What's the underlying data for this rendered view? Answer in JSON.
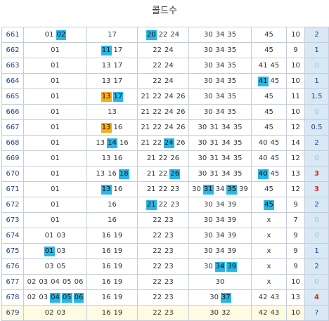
{
  "title": "콜드수",
  "colors": {
    "blue_highlight": "#28b7e8",
    "orange_highlight": "#f8ad1c",
    "red_text": "#d42a1a",
    "pale_text": "#a7c1de"
  },
  "rows": [
    {
      "round": "661",
      "g1": [
        {
          "v": "01"
        },
        {
          "v": "02",
          "h": "blue"
        }
      ],
      "g2": [
        {
          "v": "17"
        }
      ],
      "g3": [
        {
          "v": "20",
          "h": "blue"
        },
        {
          "v": "22"
        },
        {
          "v": "24"
        }
      ],
      "g4": [
        {
          "v": "30"
        },
        {
          "v": "34"
        },
        {
          "v": "35"
        }
      ],
      "g5": [
        {
          "v": "45"
        }
      ],
      "sum": "10",
      "cold": "2",
      "style": "normal"
    },
    {
      "round": "662",
      "g1": [
        {
          "v": "01"
        }
      ],
      "g2": [
        {
          "v": "11",
          "h": "blue"
        },
        {
          "v": "17"
        }
      ],
      "g3": [
        {
          "v": "22"
        },
        {
          "v": "24"
        }
      ],
      "g4": [
        {
          "v": "30"
        },
        {
          "v": "34"
        },
        {
          "v": "35"
        }
      ],
      "g5": [
        {
          "v": "45"
        }
      ],
      "sum": "9",
      "cold": "1",
      "style": "normal"
    },
    {
      "round": "663",
      "g1": [
        {
          "v": "01"
        }
      ],
      "g2": [
        {
          "v": "13"
        },
        {
          "v": "17"
        }
      ],
      "g3": [
        {
          "v": "22"
        },
        {
          "v": "24"
        }
      ],
      "g4": [
        {
          "v": "30"
        },
        {
          "v": "34"
        },
        {
          "v": "35"
        }
      ],
      "g5": [
        {
          "v": "41"
        },
        {
          "v": "45"
        }
      ],
      "sum": "10",
      "cold": "0",
      "style": "cold"
    },
    {
      "round": "664",
      "g1": [
        {
          "v": "01"
        }
      ],
      "g2": [
        {
          "v": "13"
        },
        {
          "v": "17"
        }
      ],
      "g3": [
        {
          "v": "22"
        },
        {
          "v": "24"
        }
      ],
      "g4": [
        {
          "v": "30"
        },
        {
          "v": "34"
        },
        {
          "v": "35"
        }
      ],
      "g5": [
        {
          "v": "41",
          "h": "blue"
        },
        {
          "v": "45"
        }
      ],
      "sum": "10",
      "cold": "1",
      "style": "normal"
    },
    {
      "round": "665",
      "g1": [
        {
          "v": "01"
        }
      ],
      "g2": [
        {
          "v": "13",
          "h": "orange"
        },
        {
          "v": "17",
          "h": "blue"
        }
      ],
      "g3": [
        {
          "v": "21"
        },
        {
          "v": "22"
        },
        {
          "v": "24"
        },
        {
          "v": "26"
        }
      ],
      "g4": [
        {
          "v": "30"
        },
        {
          "v": "34"
        },
        {
          "v": "35"
        }
      ],
      "g5": [
        {
          "v": "45"
        }
      ],
      "sum": "11",
      "cold": "1.5",
      "style": "normal"
    },
    {
      "round": "666",
      "g1": [
        {
          "v": "01"
        }
      ],
      "g2": [
        {
          "v": "13"
        }
      ],
      "g3": [
        {
          "v": "21"
        },
        {
          "v": "22"
        },
        {
          "v": "24"
        },
        {
          "v": "26"
        }
      ],
      "g4": [
        {
          "v": "30"
        },
        {
          "v": "34"
        },
        {
          "v": "35"
        }
      ],
      "g5": [
        {
          "v": "45"
        }
      ],
      "sum": "10",
      "cold": "0",
      "style": "cold"
    },
    {
      "round": "667",
      "g1": [
        {
          "v": "01"
        }
      ],
      "g2": [
        {
          "v": "13",
          "h": "orange"
        },
        {
          "v": "16"
        }
      ],
      "g3": [
        {
          "v": "21"
        },
        {
          "v": "22"
        },
        {
          "v": "24"
        },
        {
          "v": "26"
        }
      ],
      "g4": [
        {
          "v": "30"
        },
        {
          "v": "31"
        },
        {
          "v": "34"
        },
        {
          "v": "35"
        }
      ],
      "g5": [
        {
          "v": "45"
        }
      ],
      "sum": "12",
      "cold": "0.5",
      "style": "normal"
    },
    {
      "round": "668",
      "g1": [
        {
          "v": "01"
        }
      ],
      "g2": [
        {
          "v": "13"
        },
        {
          "v": "14",
          "h": "blue"
        },
        {
          "v": "16"
        }
      ],
      "g3": [
        {
          "v": "21"
        },
        {
          "v": "22"
        },
        {
          "v": "24",
          "h": "blue"
        },
        {
          "v": "26"
        }
      ],
      "g4": [
        {
          "v": "30"
        },
        {
          "v": "31"
        },
        {
          "v": "34"
        },
        {
          "v": "35"
        }
      ],
      "g5": [
        {
          "v": "40"
        },
        {
          "v": "45"
        }
      ],
      "sum": "14",
      "cold": "2",
      "style": "normal"
    },
    {
      "round": "669",
      "g1": [
        {
          "v": "01"
        }
      ],
      "g2": [
        {
          "v": "13"
        },
        {
          "v": "16"
        }
      ],
      "g3": [
        {
          "v": "21"
        },
        {
          "v": "22"
        },
        {
          "v": "26"
        }
      ],
      "g4": [
        {
          "v": "30"
        },
        {
          "v": "31"
        },
        {
          "v": "34"
        },
        {
          "v": "35"
        }
      ],
      "g5": [
        {
          "v": "40"
        },
        {
          "v": "45"
        }
      ],
      "sum": "12",
      "cold": "0",
      "style": "cold"
    },
    {
      "round": "670",
      "g1": [
        {
          "v": "01"
        }
      ],
      "g2": [
        {
          "v": "13"
        },
        {
          "v": "16"
        },
        {
          "v": "18",
          "h": "blue"
        }
      ],
      "g3": [
        {
          "v": "21"
        },
        {
          "v": "22"
        },
        {
          "v": "26",
          "h": "blue"
        }
      ],
      "g4": [
        {
          "v": "30"
        },
        {
          "v": "31"
        },
        {
          "v": "34"
        },
        {
          "v": "35"
        }
      ],
      "g5": [
        {
          "v": "40",
          "h": "blue"
        },
        {
          "v": "45"
        }
      ],
      "sum": "13",
      "cold": "3",
      "style": "hot"
    },
    {
      "round": "671",
      "g1": [
        {
          "v": "01"
        }
      ],
      "g2": [
        {
          "v": "13",
          "h": "blue"
        },
        {
          "v": "16"
        }
      ],
      "g3": [
        {
          "v": "21"
        },
        {
          "v": "22"
        },
        {
          "v": "23"
        }
      ],
      "g4": [
        {
          "v": "30"
        },
        {
          "v": "31",
          "h": "blue"
        },
        {
          "v": "34"
        },
        {
          "v": "35",
          "h": "blue"
        },
        {
          "v": "39"
        }
      ],
      "g5": [
        {
          "v": "45"
        }
      ],
      "sum": "12",
      "cold": "3",
      "style": "hot"
    },
    {
      "round": "672",
      "g1": [
        {
          "v": "01"
        }
      ],
      "g2": [
        {
          "v": "16"
        }
      ],
      "g3": [
        {
          "v": "21",
          "h": "blue"
        },
        {
          "v": "22"
        },
        {
          "v": "23"
        }
      ],
      "g4": [
        {
          "v": "30"
        },
        {
          "v": "34"
        },
        {
          "v": "39"
        }
      ],
      "g5": [
        {
          "v": "45",
          "h": "blue"
        }
      ],
      "sum": "9",
      "cold": "2",
      "style": "normal"
    },
    {
      "round": "673",
      "g1": [
        {
          "v": "01"
        }
      ],
      "g2": [
        {
          "v": "16"
        }
      ],
      "g3": [
        {
          "v": "22"
        },
        {
          "v": "23"
        }
      ],
      "g4": [
        {
          "v": "30"
        },
        {
          "v": "34"
        },
        {
          "v": "39"
        }
      ],
      "g5": [
        {
          "v": "x"
        }
      ],
      "sum": "7",
      "cold": "0",
      "style": "cold"
    },
    {
      "round": "674",
      "g1": [
        {
          "v": "01"
        },
        {
          "v": "03"
        }
      ],
      "g2": [
        {
          "v": "16"
        },
        {
          "v": "19"
        }
      ],
      "g3": [
        {
          "v": "22"
        },
        {
          "v": "23"
        }
      ],
      "g4": [
        {
          "v": "30"
        },
        {
          "v": "34"
        },
        {
          "v": "39"
        }
      ],
      "g5": [
        {
          "v": "x"
        }
      ],
      "sum": "9",
      "cold": "0",
      "style": "cold"
    },
    {
      "round": "675",
      "g1": [
        {
          "v": "01",
          "h": "blue"
        },
        {
          "v": "03"
        }
      ],
      "g2": [
        {
          "v": "16"
        },
        {
          "v": "19"
        }
      ],
      "g3": [
        {
          "v": "22"
        },
        {
          "v": "23"
        }
      ],
      "g4": [
        {
          "v": "30"
        },
        {
          "v": "34"
        },
        {
          "v": "39"
        }
      ],
      "g5": [
        {
          "v": "x"
        }
      ],
      "sum": "9",
      "cold": "1",
      "style": "normal"
    },
    {
      "round": "676",
      "g1": [
        {
          "v": "03"
        },
        {
          "v": "05"
        }
      ],
      "g2": [
        {
          "v": "16"
        },
        {
          "v": "19"
        }
      ],
      "g3": [
        {
          "v": "22"
        },
        {
          "v": "23"
        }
      ],
      "g4": [
        {
          "v": "30"
        },
        {
          "v": "34",
          "h": "blue"
        },
        {
          "v": "39",
          "h": "blue"
        }
      ],
      "g5": [
        {
          "v": "x"
        }
      ],
      "sum": "9",
      "cold": "2",
      "style": "normal"
    },
    {
      "round": "677",
      "g1": [
        {
          "v": "02"
        },
        {
          "v": "03"
        },
        {
          "v": "04"
        },
        {
          "v": "05"
        },
        {
          "v": "06"
        }
      ],
      "g2": [
        {
          "v": "16"
        },
        {
          "v": "19"
        }
      ],
      "g3": [
        {
          "v": "22"
        },
        {
          "v": "23"
        }
      ],
      "g4": [
        {
          "v": "30"
        }
      ],
      "g5": [
        {
          "v": "x"
        }
      ],
      "sum": "10",
      "cold": "0",
      "style": "cold"
    },
    {
      "round": "678",
      "g1": [
        {
          "v": "02"
        },
        {
          "v": "03"
        },
        {
          "v": "04",
          "h": "blue"
        },
        {
          "v": "05",
          "h": "blue"
        },
        {
          "v": "06",
          "h": "blue"
        }
      ],
      "g2": [
        {
          "v": "16"
        },
        {
          "v": "19"
        }
      ],
      "g3": [
        {
          "v": "22"
        },
        {
          "v": "23"
        }
      ],
      "g4": [
        {
          "v": "30"
        },
        {
          "v": "37",
          "h": "blue"
        }
      ],
      "g5": [
        {
          "v": "42"
        },
        {
          "v": "43"
        }
      ],
      "sum": "13",
      "cold": "4",
      "style": "hot"
    },
    {
      "round": "679",
      "g1": [
        {
          "v": "02"
        },
        {
          "v": "03"
        }
      ],
      "g2": [
        {
          "v": "16"
        },
        {
          "v": "19"
        }
      ],
      "g3": [
        {
          "v": "22"
        },
        {
          "v": "23"
        }
      ],
      "g4": [
        {
          "v": "30"
        },
        {
          "v": "32"
        }
      ],
      "g5": [
        {
          "v": "42"
        },
        {
          "v": "43"
        }
      ],
      "sum": "10",
      "cold": "?",
      "style": "normal"
    }
  ]
}
